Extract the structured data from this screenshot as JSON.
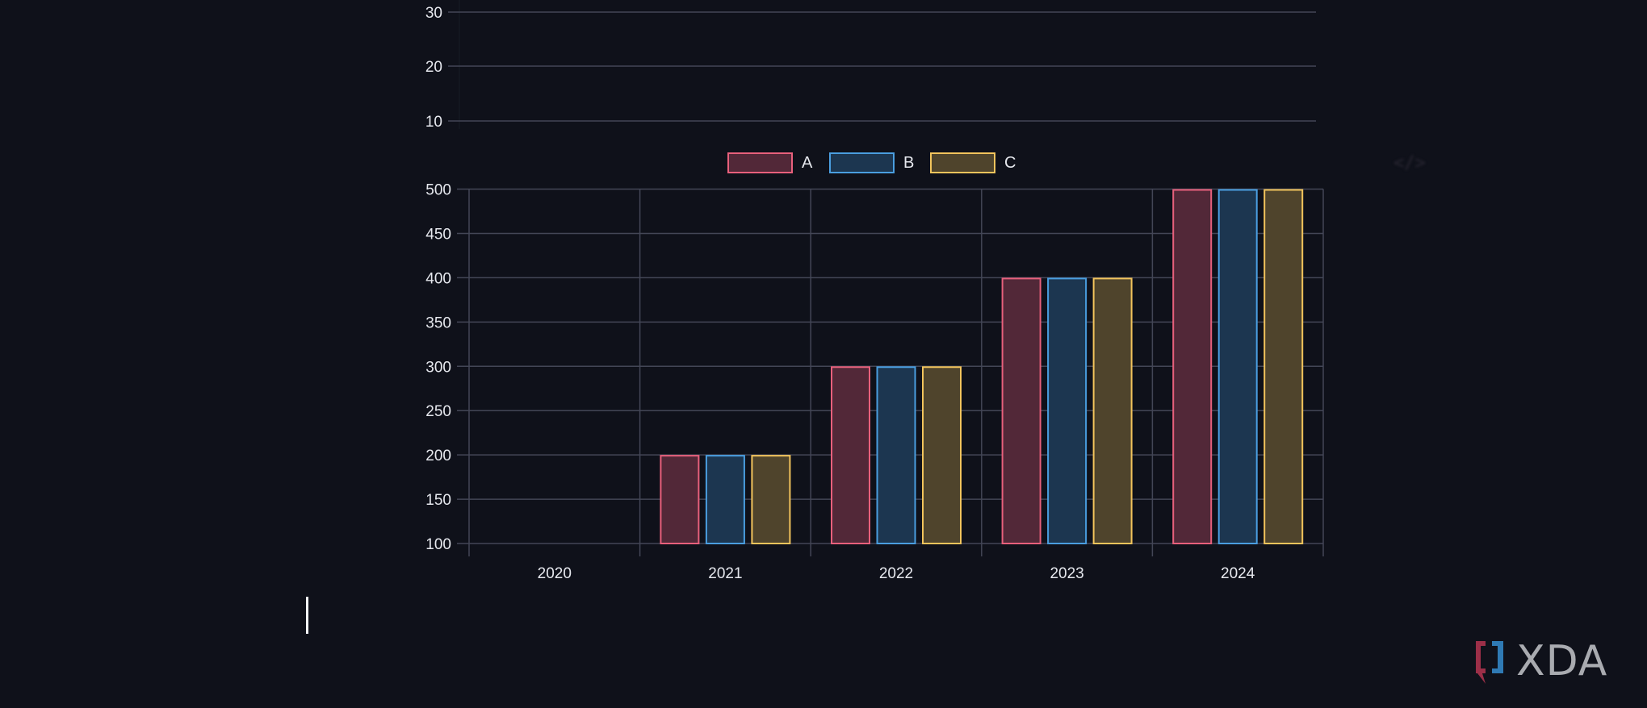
{
  "chart_data": [
    {
      "type": "line",
      "title": "",
      "note": "Partially visible chart (cropped at top); only axis gridlines shown, no data rendered",
      "xlabel": "",
      "ylabel": "",
      "y_ticks": [
        10,
        20,
        30
      ],
      "grid": true,
      "series": []
    },
    {
      "type": "bar",
      "title": "",
      "xlabel": "",
      "ylabel": "",
      "categories": [
        "2020",
        "2021",
        "2022",
        "2023",
        "2024"
      ],
      "series": [
        {
          "name": "A",
          "values": [
            100,
            200,
            300,
            400,
            500
          ],
          "border_color": "#e8607c",
          "fill_color": "#522838"
        },
        {
          "name": "B",
          "values": [
            100,
            200,
            300,
            400,
            500
          ],
          "border_color": "#4a9ee0",
          "fill_color": "#1c3650"
        },
        {
          "name": "C",
          "values": [
            100,
            200,
            300,
            400,
            500
          ],
          "border_color": "#f2c45c",
          "fill_color": "#4f442c"
        }
      ],
      "ylim": [
        100,
        500
      ],
      "y_ticks": [
        100,
        150,
        200,
        250,
        300,
        350,
        400,
        450,
        500
      ],
      "grid": true,
      "legend_position": "top"
    }
  ],
  "top_chart": {
    "ticks": [
      {
        "label": "30",
        "y": 15
      },
      {
        "label": "20",
        "y": 82
      },
      {
        "label": "10",
        "y": 150
      }
    ]
  },
  "legend": {
    "items": [
      {
        "label": "A",
        "border": "#e8607c",
        "fill": "#522838"
      },
      {
        "label": "B",
        "border": "#4a9ee0",
        "fill": "#1c3650"
      },
      {
        "label": "C",
        "border": "#f2c45c",
        "fill": "#4f442c"
      }
    ]
  },
  "colors": {
    "background": "#0f111a",
    "grid": "#434656",
    "text": "#e6e8ee"
  },
  "watermark": {
    "brand": "XDA",
    "code_glyph": "</>"
  }
}
